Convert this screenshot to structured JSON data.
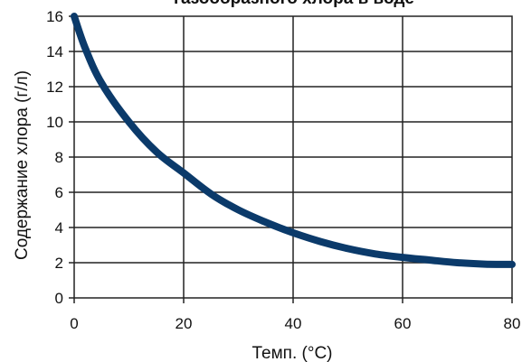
{
  "chart_data": {
    "type": "line",
    "title": "газообразного хлора в воде",
    "xlabel": "Темп. (°C)",
    "ylabel": "Содержание хлора (г/л)",
    "xlim": [
      0,
      80
    ],
    "ylim": [
      0,
      16
    ],
    "x_ticks": [
      "0",
      "20",
      "40",
      "60",
      "80"
    ],
    "y_ticks": [
      "0",
      "2",
      "4",
      "6",
      "8",
      "10",
      "12",
      "14",
      "16"
    ],
    "grid": true,
    "series": [
      {
        "color": "#0b3a6a",
        "x": [
          0,
          2,
          5,
          10,
          15,
          20,
          25,
          30,
          35,
          40,
          45,
          50,
          55,
          60,
          65,
          70,
          75,
          80
        ],
        "y": [
          16.0,
          14.2,
          12.2,
          10.0,
          8.3,
          7.1,
          5.9,
          5.0,
          4.3,
          3.7,
          3.2,
          2.8,
          2.5,
          2.3,
          2.15,
          2.0,
          1.92,
          1.9
        ]
      }
    ]
  }
}
